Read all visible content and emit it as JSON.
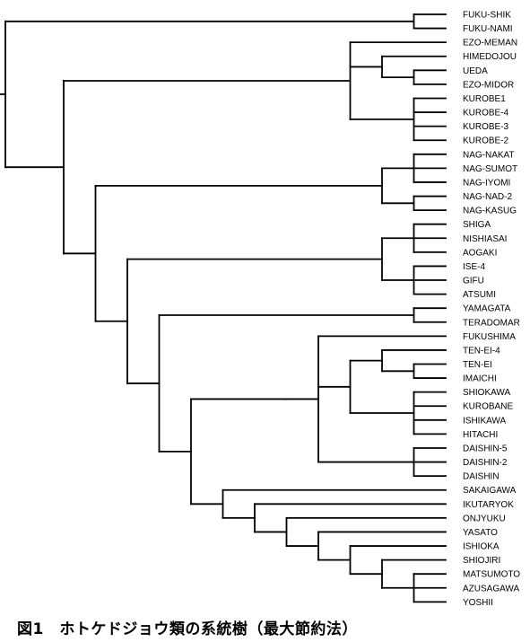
{
  "caption": "図1　ホトケドジョウ類の系統樹（最大節約法）",
  "line_color": "#000000",
  "tree": {
    "c": [
      {
        "c": [
          {
            "l": "FUKU-SHIK"
          },
          {
            "l": "FUKU-NAMI"
          }
        ]
      },
      {
        "c": [
          {
            "c": [
              {
                "l": "EZO-MEMAN"
              },
              {
                "c": [
                  {
                    "l": "HIMEDOJOU"
                  },
                  {
                    "c": [
                      {
                        "l": "UEDA"
                      },
                      {
                        "l": "EZO-MIDOR"
                      }
                    ]
                  }
                ]
              },
              {
                "c": [
                  {
                    "l": "KUROBE1"
                  },
                  {
                    "l": "KUROBE-4"
                  },
                  {
                    "l": "KUROBE-3"
                  },
                  {
                    "l": "KUROBE-2"
                  }
                ]
              }
            ]
          },
          {
            "c": [
              {
                "c": [
                  {
                    "c": [
                      {
                        "l": "NAG-NAKAT"
                      },
                      {
                        "l": "NAG-SUMOT"
                      },
                      {
                        "l": "NAG-IYOMI"
                      }
                    ]
                  },
                  {
                    "c": [
                      {
                        "l": "NAG-NAD-2"
                      },
                      {
                        "l": "NAG-KASUG"
                      }
                    ]
                  }
                ]
              },
              {
                "c": [
                  {
                    "c": [
                      {
                        "c": [
                          {
                            "l": "SHIGA"
                          },
                          {
                            "l": "NISHIASAI"
                          },
                          {
                            "l": "AOGAKI"
                          }
                        ]
                      },
                      {
                        "c": [
                          {
                            "l": "ISE-4"
                          },
                          {
                            "l": "GIFU"
                          },
                          {
                            "l": "ATSUMI"
                          }
                        ]
                      }
                    ]
                  },
                  {
                    "c": [
                      {
                        "c": [
                          {
                            "l": "YAMAGATA"
                          },
                          {
                            "l": "TERADOMAR"
                          }
                        ]
                      },
                      {
                        "c": [
                          {
                            "c": [
                              {
                                "c": [
                                  {
                                    "l": "FUKUSHIMA"
                                  },
                                  {
                                    "c": [
                                      {
                                        "c": [
                                          {
                                            "l": "TEN-EI-4"
                                          },
                                          {
                                            "c": [
                                              {
                                                "l": "TEN-EI"
                                              },
                                              {
                                                "l": "IMAICHI"
                                              }
                                            ]
                                          }
                                        ]
                                      },
                                      {
                                        "c": [
                                          {
                                            "l": "SHIOKAWA"
                                          },
                                          {
                                            "l": "KUROBANE"
                                          },
                                          {
                                            "l": "ISHIKAWA"
                                          },
                                          {
                                            "l": "HITACHI"
                                          }
                                        ]
                                      }
                                    ]
                                  },
                                  {
                                    "c": [
                                      {
                                        "l": "DAISHIN-5"
                                      },
                                      {
                                        "l": "DAISHIN-2"
                                      },
                                      {
                                        "l": "DAISHIN"
                                      }
                                    ]
                                  }
                                ]
                              }
                            ]
                          },
                          {
                            "c": [
                              {
                                "l": "SAKAIGAWA"
                              },
                              {
                                "c": [
                                  {
                                    "l": "IKUTARYOK"
                                  },
                                  {
                                    "c": [
                                      {
                                        "l": "ONJYUKU"
                                      },
                                      {
                                        "c": [
                                          {
                                            "l": "YASATO"
                                          },
                                          {
                                            "c": [
                                              {
                                                "l": "ISHIOKA"
                                              },
                                              {
                                                "c": [
                                                  {
                                                    "l": "SHIOJIRI"
                                                  },
                                                  {
                                                    "c": [
                                                      {
                                                        "l": "MATSUMOTO"
                                                      },
                                                      {
                                                        "l": "AZUSAGAWA"
                                                      },
                                                      {
                                                        "l": "YOSHII"
                                                      }
                                                    ]
                                                  }
                                                ]
                                              }
                                            ]
                                          }
                                        ]
                                      }
                                    ]
                                  }
                                ]
                              }
                            ]
                          }
                        ]
                      }
                    ]
                  }
                ]
              }
            ]
          }
        ]
      }
    ]
  }
}
